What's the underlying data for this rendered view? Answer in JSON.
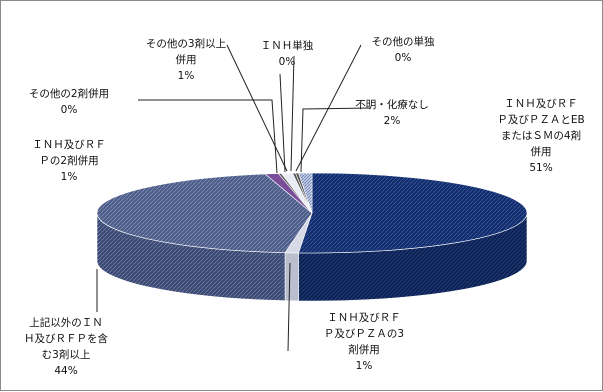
{
  "chart_data": {
    "type": "pie",
    "title": "",
    "slices": [
      {
        "label": [
          "ＩＮＨ及びＲＦ",
          "Ｐ及びＰＺＡとEB",
          "またはＳＭの4剤",
          "併用"
        ],
        "value": 51,
        "value_label": "51%"
      },
      {
        "label": [
          "ＩＮＨ及びＲＦ",
          "Ｐ及びＰＺＡの3",
          "剤併用"
        ],
        "value": 1,
        "value_label": "1%"
      },
      {
        "label": [
          "上記以外のＩＮ",
          "Ｈ及びＲＦＰを含",
          "む3剤以上"
        ],
        "value": 44,
        "value_label": "44%"
      },
      {
        "label": [
          "ＩＮＨ及びＲＦ",
          "Ｐの2剤併用"
        ],
        "value": 1,
        "value_label": "1%"
      },
      {
        "label": [
          "その他の2剤併用"
        ],
        "value": 0,
        "value_label": "0%"
      },
      {
        "label": [
          "その他の3剤以上",
          "併用"
        ],
        "value": 1,
        "value_label": "1%"
      },
      {
        "label": [
          "ＩＮＨ単独"
        ],
        "value": 0,
        "value_label": "0%"
      },
      {
        "label": [
          "その他の単独"
        ],
        "value": 0,
        "value_label": "0%"
      },
      {
        "label": [
          "不明・化療なし"
        ],
        "value": 2,
        "value_label": "2%"
      }
    ],
    "colors": {
      "dark_navy": "#0f2b6b",
      "pale": "#d6dae6",
      "slate": "#4b5b86",
      "purple": "#7a4d99",
      "stripe_blue": "#8f9fc8"
    },
    "legend": "none"
  }
}
